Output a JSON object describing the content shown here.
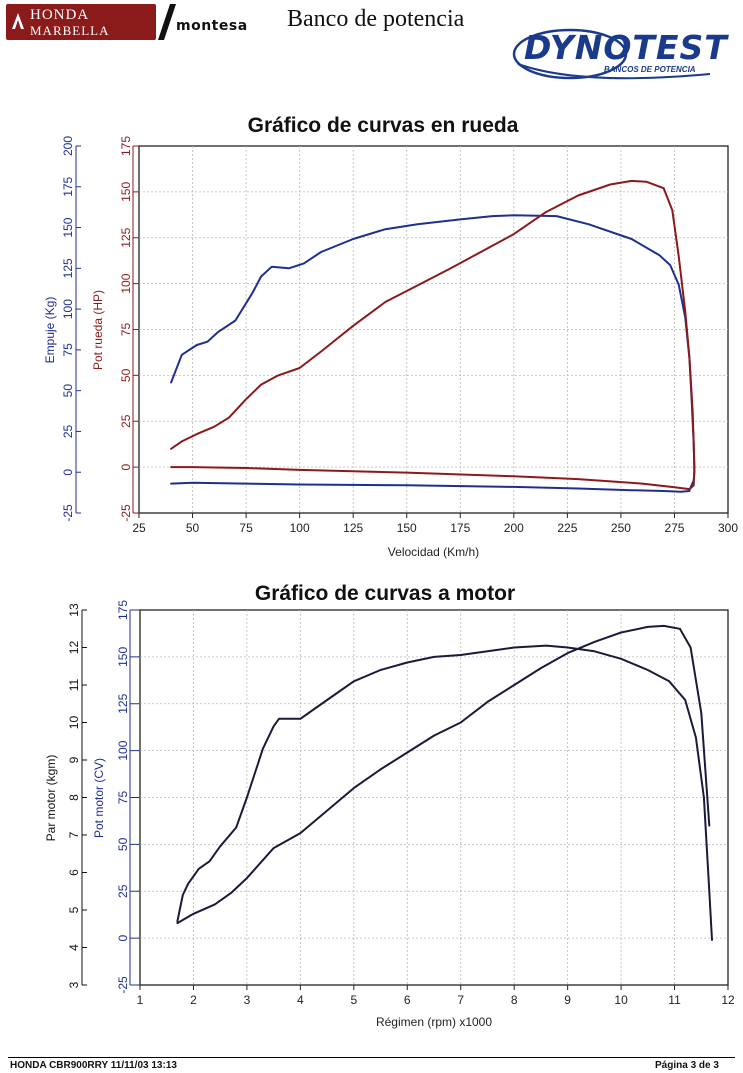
{
  "header": {
    "honda_line1": "HONDA",
    "honda_line2": "MARBELLA",
    "montesa": "montesa",
    "title": "Banco de potencia",
    "dynotest": "DYNOTEST",
    "dynotest_sub": "BANCOS DE POTENCIA",
    "colors": {
      "honda_red": "#8b1a1a",
      "dynotest_blue": "#1a3a8c"
    }
  },
  "footer": {
    "left": "HONDA CBR900RRY 11/11/03 13:13",
    "right": "Página 3 de 3"
  },
  "chart_data": [
    {
      "type": "line",
      "title": "Gráfico de curvas en rueda",
      "xlabel": "Velocidad (Km/h)",
      "xlim": [
        25,
        300
      ],
      "xticks": [
        25,
        50,
        75,
        100,
        125,
        150,
        175,
        200,
        225,
        250,
        275,
        300
      ],
      "grid": true,
      "left_axis": {
        "label": "Empuje (Kg)",
        "color": "#1f2f8f",
        "ylim": [
          -25,
          200
        ],
        "ticks": [
          -25,
          0,
          25,
          50,
          75,
          100,
          125,
          150,
          175,
          200
        ]
      },
      "right_axis": {
        "label": "Pot rueda (HP)",
        "color": "#8b1a1a",
        "ylim": [
          -25,
          175
        ],
        "ticks": [
          -25,
          0,
          25,
          50,
          75,
          100,
          125,
          150,
          175
        ]
      },
      "series": [
        {
          "color": "#1f2f8f",
          "axis": "left",
          "points": [
            [
              40,
              55
            ],
            [
              45,
              72
            ],
            [
              52,
              78
            ],
            [
              57,
              80
            ],
            [
              62,
              86
            ],
            [
              70,
              93
            ],
            [
              78,
              110
            ],
            [
              82,
              120
            ],
            [
              87,
              126
            ],
            [
              95,
              125
            ],
            [
              102,
              128
            ],
            [
              110,
              135
            ],
            [
              125,
              143
            ],
            [
              140,
              149
            ],
            [
              155,
              152
            ],
            [
              175,
              155
            ],
            [
              190,
              157
            ],
            [
              200,
              157.5
            ],
            [
              220,
              157
            ],
            [
              235,
              152
            ],
            [
              255,
              143
            ],
            [
              268,
              133
            ],
            [
              273,
              127
            ],
            [
              277,
              115
            ],
            [
              280,
              95
            ],
            [
              282,
              70
            ],
            [
              283,
              45
            ],
            [
              284,
              18
            ],
            [
              284.3,
              0
            ],
            [
              284,
              -5
            ],
            [
              282,
              -11
            ]
          ]
        },
        {
          "color": "#1f2f8f",
          "axis": "left",
          "points": [
            [
              40,
              -7
            ],
            [
              50,
              -6.5
            ],
            [
              75,
              -7
            ],
            [
              100,
              -7.5
            ],
            [
              150,
              -8
            ],
            [
              200,
              -9
            ],
            [
              230,
              -10
            ],
            [
              255,
              -11
            ],
            [
              270,
              -11.5
            ],
            [
              278,
              -12
            ],
            [
              282,
              -11.5
            ]
          ]
        },
        {
          "color": "#8b1a1a",
          "axis": "right",
          "points": [
            [
              40,
              10
            ],
            [
              45,
              14
            ],
            [
              52,
              18
            ],
            [
              60,
              22
            ],
            [
              67,
              27
            ],
            [
              75,
              37
            ],
            [
              82,
              45
            ],
            [
              90,
              50
            ],
            [
              100,
              54
            ],
            [
              110,
              63
            ],
            [
              125,
              77
            ],
            [
              140,
              90
            ],
            [
              150,
              96
            ],
            [
              170,
              108
            ],
            [
              200,
              127
            ],
            [
              215,
              139
            ],
            [
              230,
              148
            ],
            [
              245,
              154
            ],
            [
              255,
              156
            ],
            [
              262,
              155.5
            ],
            [
              270,
              152
            ],
            [
              274,
              140
            ],
            [
              277,
              115
            ],
            [
              280,
              85
            ],
            [
              282,
              60
            ],
            [
              283.5,
              30
            ],
            [
              284.3,
              0
            ],
            [
              284,
              -10
            ],
            [
              282,
              -12
            ]
          ]
        },
        {
          "color": "#8b1a1a",
          "axis": "right",
          "points": [
            [
              40,
              0
            ],
            [
              50,
              0
            ],
            [
              75,
              -0.5
            ],
            [
              100,
              -1.5
            ],
            [
              150,
              -3
            ],
            [
              200,
              -5
            ],
            [
              230,
              -6.5
            ],
            [
              260,
              -9
            ],
            [
              275,
              -11
            ],
            [
              282,
              -12
            ]
          ]
        }
      ]
    },
    {
      "type": "line",
      "title": "Gráfico de curvas a motor",
      "xlabel": "Régimen (rpm) x1000",
      "xlim": [
        1,
        12
      ],
      "xticks": [
        1,
        2,
        3,
        4,
        5,
        6,
        7,
        8,
        9,
        10,
        11,
        12
      ],
      "grid": true,
      "left_axis": {
        "label": "Par motor (kgm)",
        "color": "#111111",
        "ylim": [
          3,
          13
        ],
        "ticks": [
          3,
          4,
          5,
          6,
          7,
          8,
          9,
          10,
          11,
          12,
          13
        ]
      },
      "right_axis": {
        "label": "Pot motor (CV)",
        "color": "#1f2f8f",
        "ylim": [
          -25,
          175
        ],
        "ticks": [
          -25,
          0,
          25,
          50,
          75,
          100,
          125,
          150,
          175
        ]
      },
      "series": [
        {
          "color": "#1a1a3a",
          "axis": "left",
          "points": [
            [
              1.7,
              4.7
            ],
            [
              1.8,
              5.4
            ],
            [
              1.9,
              5.7
            ],
            [
              2.1,
              6.1
            ],
            [
              2.3,
              6.3
            ],
            [
              2.5,
              6.7
            ],
            [
              2.8,
              7.2
            ],
            [
              3.0,
              8.0
            ],
            [
              3.3,
              9.3
            ],
            [
              3.5,
              9.9
            ],
            [
              3.6,
              10.1
            ],
            [
              3.8,
              10.1
            ],
            [
              4.0,
              10.1
            ],
            [
              4.3,
              10.4
            ],
            [
              4.7,
              10.8
            ],
            [
              5.0,
              11.1
            ],
            [
              5.5,
              11.4
            ],
            [
              6.0,
              11.6
            ],
            [
              6.5,
              11.75
            ],
            [
              7.0,
              11.8
            ],
            [
              7.5,
              11.9
            ],
            [
              8.0,
              12.0
            ],
            [
              8.6,
              12.05
            ],
            [
              9.0,
              12.0
            ],
            [
              9.5,
              11.9
            ],
            [
              10.0,
              11.7
            ],
            [
              10.5,
              11.4
            ],
            [
              10.9,
              11.1
            ],
            [
              11.2,
              10.6
            ],
            [
              11.4,
              9.6
            ],
            [
              11.55,
              8.0
            ],
            [
              11.65,
              5.5
            ],
            [
              11.7,
              4.2
            ]
          ]
        },
        {
          "color": "#1a1a3a",
          "axis": "right",
          "points": [
            [
              1.7,
              8
            ],
            [
              2.0,
              13
            ],
            [
              2.4,
              18
            ],
            [
              2.7,
              24
            ],
            [
              3.0,
              32
            ],
            [
              3.5,
              48
            ],
            [
              4.0,
              56
            ],
            [
              4.5,
              68
            ],
            [
              5.0,
              80
            ],
            [
              5.5,
              90
            ],
            [
              6.0,
              99
            ],
            [
              6.5,
              108
            ],
            [
              7.0,
              115
            ],
            [
              7.5,
              126
            ],
            [
              8.0,
              135
            ],
            [
              8.5,
              144
            ],
            [
              9.0,
              152
            ],
            [
              9.5,
              158
            ],
            [
              10.0,
              163
            ],
            [
              10.5,
              166
            ],
            [
              10.8,
              166.5
            ],
            [
              11.1,
              165
            ],
            [
              11.3,
              155
            ],
            [
              11.5,
              120
            ],
            [
              11.65,
              60
            ]
          ]
        }
      ]
    }
  ]
}
